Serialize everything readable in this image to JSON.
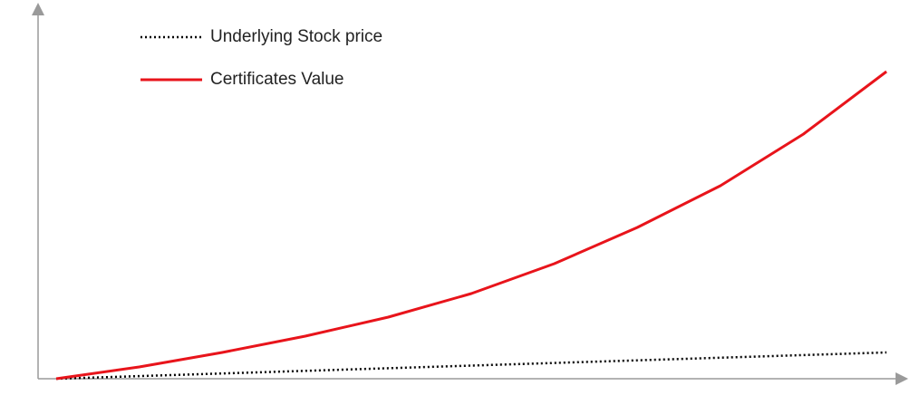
{
  "chart_data": {
    "type": "line",
    "x": [
      0,
      1,
      2,
      3,
      4,
      5,
      6,
      7,
      8,
      9,
      10
    ],
    "xlim": [
      0,
      10
    ],
    "ylim": [
      0,
      100
    ],
    "legend": "top-left",
    "series": [
      {
        "name": "Underlying Stock price",
        "color": "#000000",
        "dash": "dotted",
        "values": [
          0,
          0.725,
          1.45,
          2.175,
          2.9,
          3.625,
          4.35,
          5.075,
          5.8,
          6.525,
          7.25
        ]
      },
      {
        "name": "Certificates Value",
        "color": "#e8141b",
        "dash": "solid",
        "values": [
          0,
          3.25,
          7.25,
          11.75,
          17,
          23.5,
          31.75,
          41.75,
          53.25,
          67.5,
          84.75
        ]
      }
    ]
  }
}
